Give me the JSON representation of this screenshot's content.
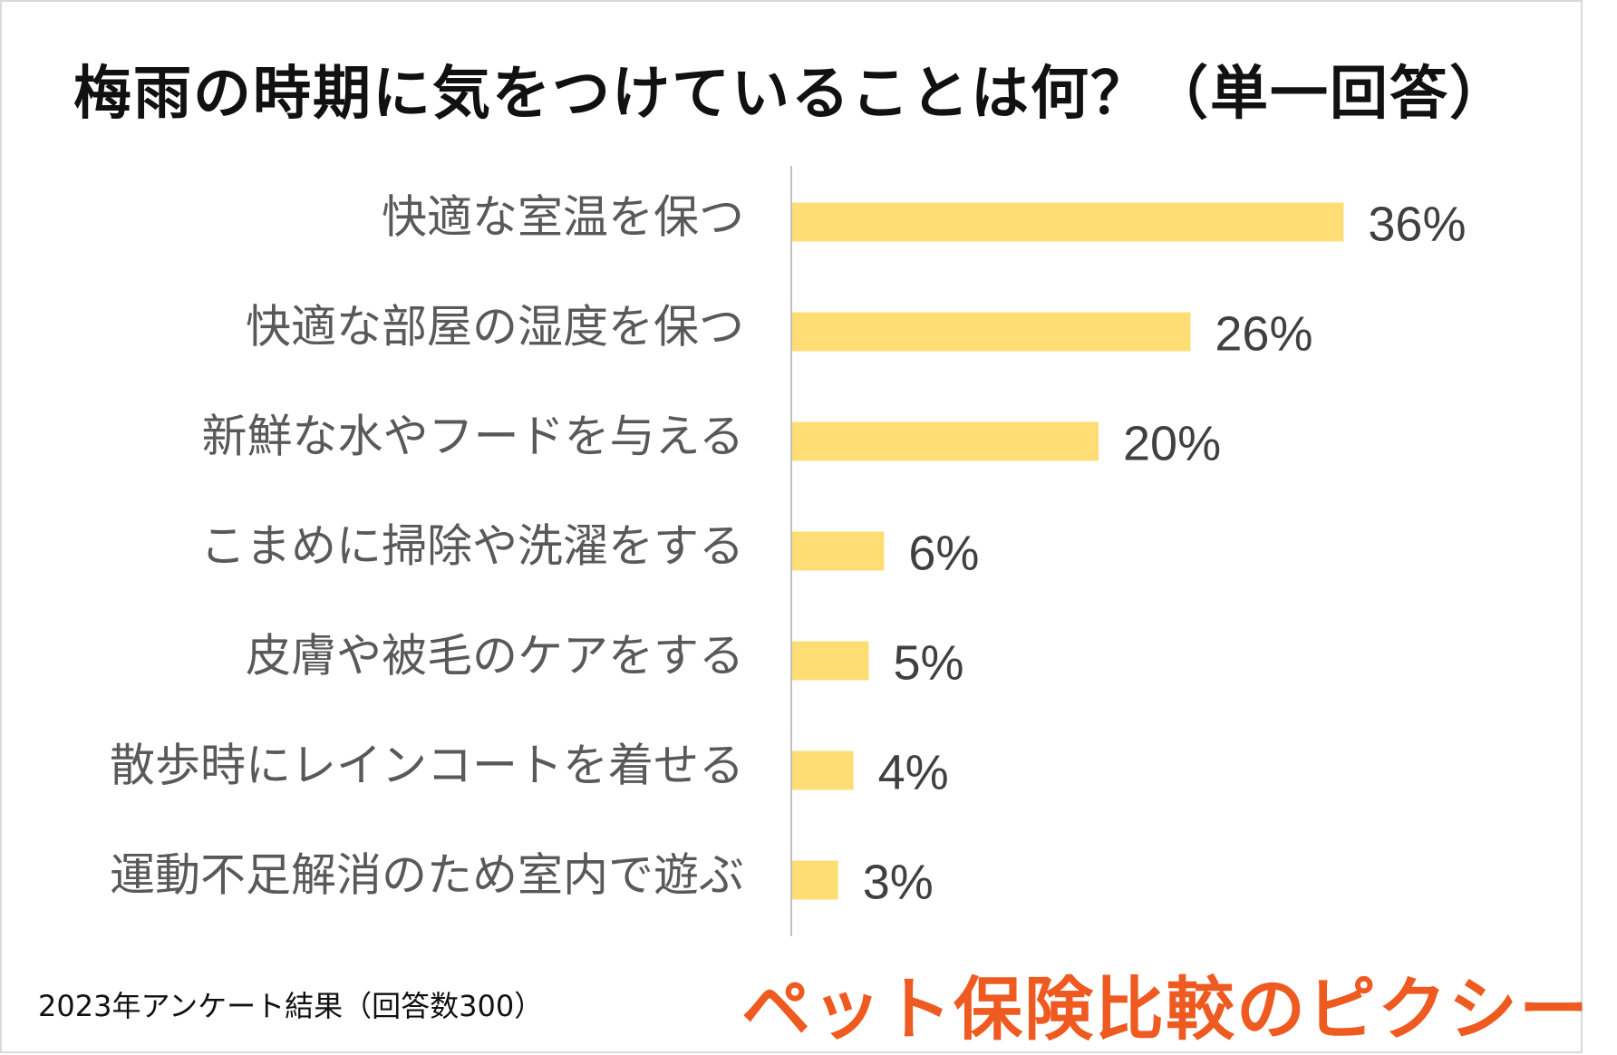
{
  "chart_data": {
    "type": "bar",
    "orientation": "horizontal",
    "title": "梅雨の時期に気をつけていることは何？（単一回答）",
    "categories": [
      "快適な室温を保つ",
      "快適な部屋の湿度を保つ",
      "新鮮な水やフードを与える",
      "こまめに掃除や洗濯をする",
      "皮膚や被毛のケアをする",
      "散歩時にレインコートを着せる",
      "運動不足解消のため室内で遊ぶ"
    ],
    "values": [
      36,
      26,
      20,
      6,
      5,
      4,
      3
    ],
    "value_labels": [
      "36%",
      "26%",
      "20%",
      "6%",
      "5%",
      "4%",
      "3%"
    ],
    "unit": "%",
    "bar_color": "#ffdd75",
    "grid": false,
    "legend": "none"
  },
  "footnote": "2023年アンケート結果（回答数300）",
  "brand": "ペット保険比較のピクシー",
  "colors": {
    "brand": "#ee5a1f",
    "axis": "#bfbfbf",
    "label": "#595959",
    "value": "#404040"
  }
}
